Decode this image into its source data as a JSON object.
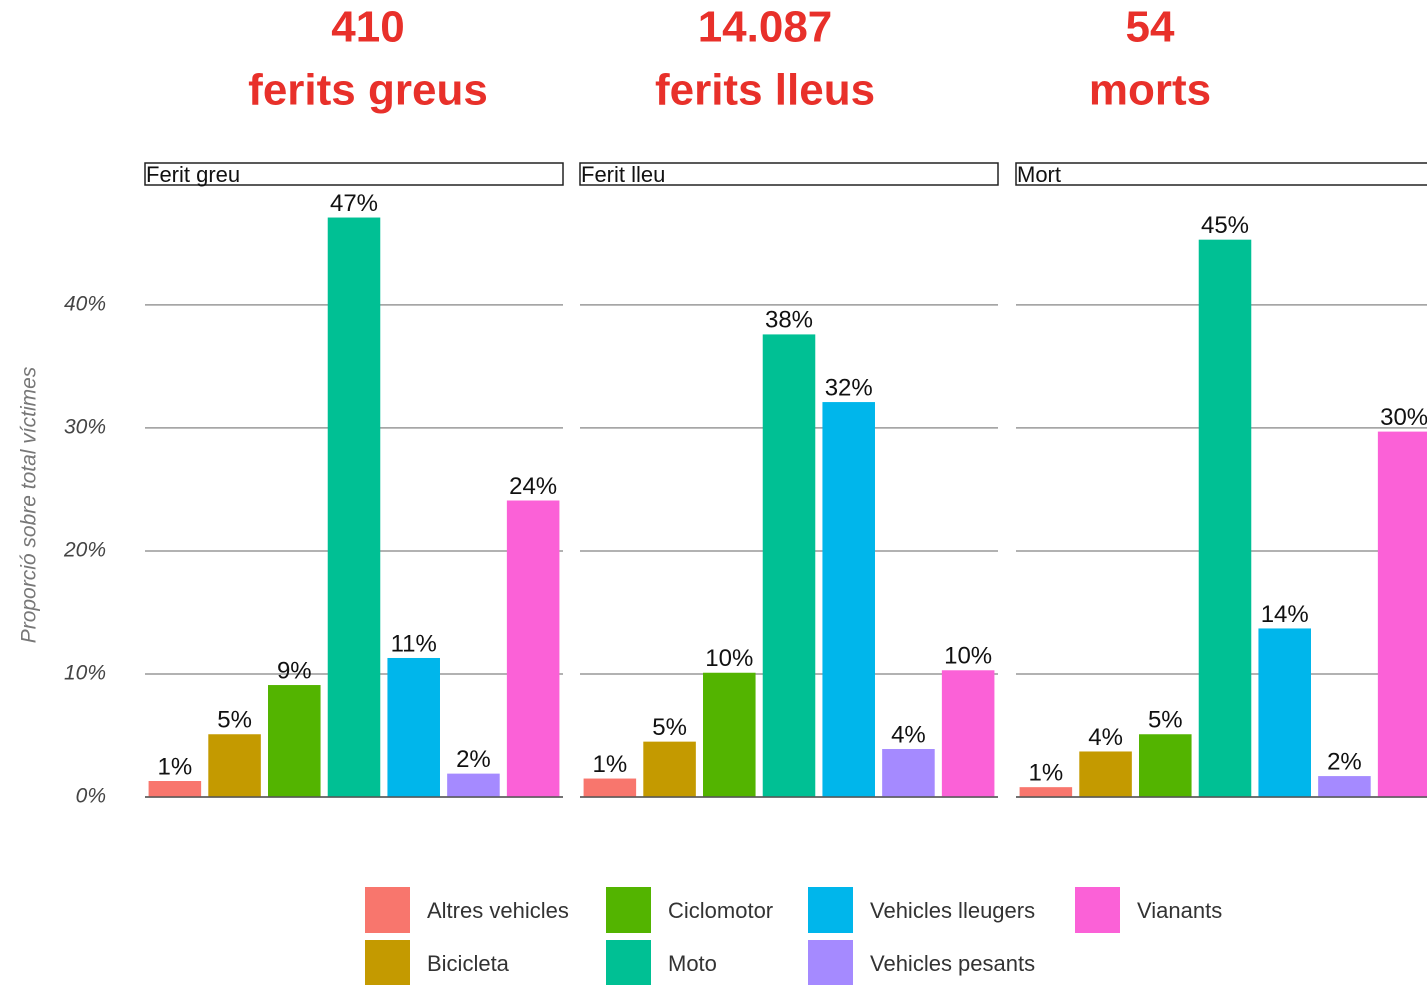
{
  "chart_data": {
    "type": "bar",
    "ylabel": "Proporció sobre total víctimes",
    "categories": [
      "Altres vehicles",
      "Bicicleta",
      "Ciclomotor",
      "Moto",
      "Vehicles lleugers",
      "Vehicles pesants",
      "Vianants"
    ],
    "colors": [
      "#f8766d",
      "#c49a00",
      "#53b400",
      "#00c094",
      "#00b6eb",
      "#a58aff",
      "#fb61d7"
    ],
    "ylim": [
      0,
      49.5
    ],
    "yticks": [
      {
        "value": 0,
        "label": "0%"
      },
      {
        "value": 10,
        "label": "10%"
      },
      {
        "value": 20,
        "label": "20%"
      },
      {
        "value": 30,
        "label": "30%"
      },
      {
        "value": 40,
        "label": "40%"
      }
    ],
    "grid": true,
    "series": [
      {
        "name": "Ferit greu",
        "headline": [
          "410",
          "ferits greus"
        ],
        "values": [
          1.3,
          5.1,
          9.1,
          47.1,
          11.3,
          1.9,
          24.1
        ],
        "value_labels": [
          "1%",
          "5%",
          "9%",
          "47%",
          "11%",
          "2%",
          "24%"
        ]
      },
      {
        "name": "Ferit lleu",
        "headline": [
          "14.087",
          "ferits lleus"
        ],
        "values": [
          1.5,
          4.5,
          10.1,
          37.6,
          32.1,
          3.9,
          10.3
        ],
        "value_labels": [
          "1%",
          "5%",
          "10%",
          "38%",
          "32%",
          "4%",
          "10%"
        ]
      },
      {
        "name": "Mort",
        "headline": [
          "54",
          "morts"
        ],
        "values": [
          0.8,
          3.7,
          5.1,
          45.3,
          13.7,
          1.7,
          29.7
        ],
        "value_labels": [
          "1%",
          "4%",
          "5%",
          "45%",
          "14%",
          "2%",
          "30%"
        ]
      }
    ]
  }
}
